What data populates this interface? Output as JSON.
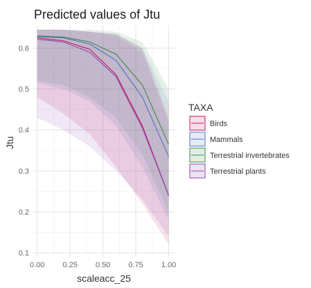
{
  "chart_data": {
    "type": "line",
    "title": "Predicted values of Jtu",
    "xlabel": "scaleacc_25",
    "ylabel": "Jtu",
    "xlim": [
      -0.03,
      1.05
    ],
    "ylim": [
      0.09,
      0.655
    ],
    "x_ticks": [
      0.0,
      0.25,
      0.5,
      0.75,
      1.0
    ],
    "x_tick_labels": [
      "0.00",
      "0.25",
      "0.50",
      "0.75",
      "1.00"
    ],
    "y_ticks": [
      0.1,
      0.2,
      0.3,
      0.4,
      0.5,
      0.6
    ],
    "y_tick_labels": [
      "0.1",
      "0.2",
      "0.3",
      "0.4",
      "0.5",
      "0.6"
    ],
    "grid": true,
    "legend": {
      "title": "TAXA",
      "position": "right"
    },
    "x": [
      0.0,
      0.2,
      0.4,
      0.6,
      0.8,
      1.0
    ],
    "series": [
      {
        "name": "Birds",
        "color": "#c2185b",
        "values": [
          0.625,
          0.618,
          0.597,
          0.535,
          0.41,
          0.24
        ],
        "lower": [
          0.48,
          0.44,
          0.39,
          0.31,
          0.22,
          0.12
        ],
        "upper": [
          0.645,
          0.645,
          0.64,
          0.635,
          0.6,
          0.43
        ]
      },
      {
        "name": "Mammals",
        "color": "#4a74c0",
        "values": [
          0.628,
          0.625,
          0.61,
          0.57,
          0.48,
          0.335
        ],
        "lower": [
          0.515,
          0.5,
          0.47,
          0.41,
          0.31,
          0.18
        ],
        "upper": [
          0.645,
          0.645,
          0.64,
          0.635,
          0.6,
          0.47
        ]
      },
      {
        "name": "Terrestrial invertebrates",
        "color": "#3c8c4a",
        "values": [
          0.63,
          0.627,
          0.615,
          0.585,
          0.51,
          0.365
        ],
        "lower": [
          0.52,
          0.51,
          0.48,
          0.43,
          0.34,
          0.2
        ],
        "upper": [
          0.645,
          0.645,
          0.645,
          0.64,
          0.615,
          0.5
        ]
      },
      {
        "name": "Terrestrial plants",
        "color": "#8e44ad",
        "values": [
          0.622,
          0.615,
          0.59,
          0.53,
          0.405,
          0.24
        ],
        "lower": [
          0.43,
          0.4,
          0.36,
          0.3,
          0.23,
          0.14
        ],
        "upper": [
          0.645,
          0.645,
          0.64,
          0.63,
          0.59,
          0.42
        ]
      }
    ]
  }
}
